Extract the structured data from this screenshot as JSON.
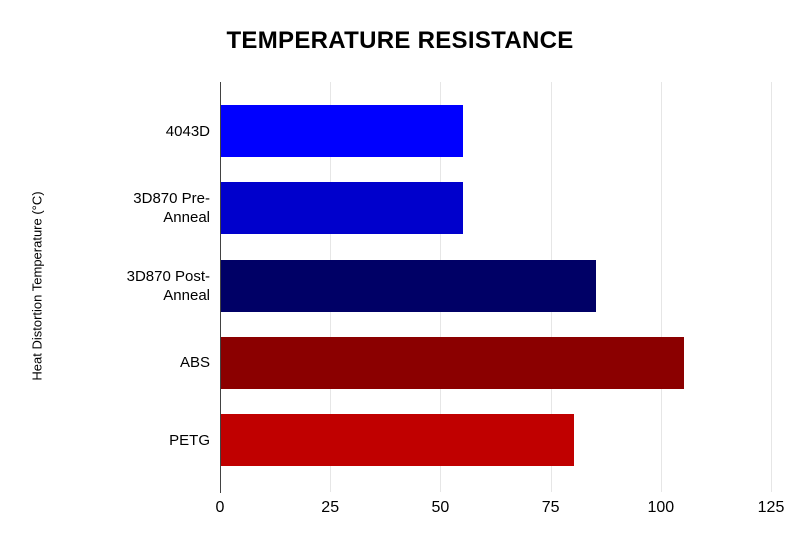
{
  "page": {
    "background": "#ffffff"
  },
  "chart_data": {
    "type": "bar",
    "orientation": "horizontal",
    "title": "TEMPERATURE RESISTANCE",
    "xlabel": "",
    "ylabel": "Heat Distortion Temperature (°C)",
    "categories": [
      "4043D",
      "3D870 Pre-Anneal",
      "3D870 Post-Anneal",
      "ABS",
      "PETG"
    ],
    "category_lines": [
      [
        "4043D"
      ],
      [
        "3D870 Pre-",
        "Anneal"
      ],
      [
        "3D870 Post-",
        "Anneal"
      ],
      [
        "ABS"
      ],
      [
        "PETG"
      ]
    ],
    "values": [
      55,
      55,
      85,
      105,
      80
    ],
    "bar_colors": [
      "#0000ff",
      "#0000cc",
      "#000066",
      "#8b0000",
      "#c00000"
    ],
    "xlim": [
      0,
      125
    ],
    "xticks": [
      0,
      25,
      50,
      75,
      100,
      125
    ],
    "xtick_labels": [
      "0",
      "25",
      "50",
      "75",
      "100",
      "125"
    ],
    "grid": true,
    "legend": "none",
    "styles": {
      "grid_color": "#e6e6e6",
      "baseline_color": "#424242",
      "text_color": "#000000",
      "title_color": "#000000"
    }
  }
}
